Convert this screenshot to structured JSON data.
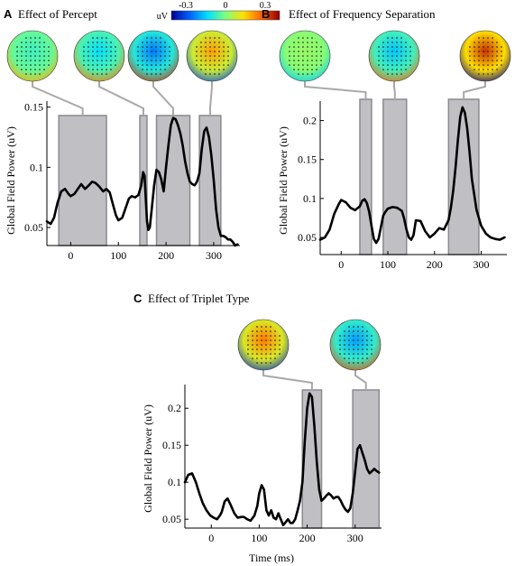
{
  "colorbar": {
    "unit": "uV",
    "min_label": "-0.3",
    "mid_label": "0",
    "max_label": "0.3",
    "colors": [
      "#00008f",
      "#005fff",
      "#00dfff",
      "#7fff7f",
      "#ffdf00",
      "#ff5f00",
      "#8f0000"
    ]
  },
  "style": {
    "line_color": "#000000",
    "window_fill": "#c0c0c4",
    "window_stroke": "#8a8a8e",
    "connector_color": "#a8a8a8"
  },
  "chart_data": [
    {
      "id": "A",
      "type": "line",
      "letter": "A",
      "title": "Effect of Percept",
      "xlabel": "",
      "ylabel": "Global Field Power (uV)",
      "xlim": [
        -50,
        355
      ],
      "ylim": [
        0.035,
        0.155
      ],
      "xticks": [
        "0",
        "100",
        "200",
        "300"
      ],
      "yticks": [
        "0.05",
        "0.1",
        "0.15"
      ],
      "windows": [
        [
          -25,
          75
        ],
        [
          145,
          160
        ],
        [
          180,
          250
        ],
        [
          270,
          315
        ]
      ],
      "x": [
        -50,
        -42,
        -35,
        -28,
        -20,
        -12,
        -5,
        0,
        8,
        15,
        22,
        30,
        38,
        45,
        52,
        60,
        68,
        75,
        82,
        88,
        95,
        100,
        108,
        115,
        122,
        128,
        135,
        142,
        148,
        152,
        155,
        158,
        160,
        163,
        166,
        170,
        175,
        180,
        185,
        190,
        195,
        200,
        205,
        210,
        215,
        220,
        225,
        230,
        235,
        240,
        245,
        250,
        255,
        260,
        265,
        270,
        275,
        280,
        285,
        290,
        295,
        300,
        305,
        310,
        315,
        320,
        325,
        330,
        335,
        340,
        345,
        350
      ],
      "y": [
        0.055,
        0.053,
        0.058,
        0.07,
        0.08,
        0.082,
        0.078,
        0.076,
        0.078,
        0.082,
        0.086,
        0.082,
        0.085,
        0.088,
        0.087,
        0.084,
        0.08,
        0.082,
        0.079,
        0.07,
        0.06,
        0.056,
        0.058,
        0.066,
        0.074,
        0.076,
        0.075,
        0.077,
        0.085,
        0.096,
        0.093,
        0.07,
        0.055,
        0.048,
        0.05,
        0.065,
        0.085,
        0.098,
        0.096,
        0.09,
        0.08,
        0.1,
        0.118,
        0.135,
        0.141,
        0.14,
        0.135,
        0.128,
        0.118,
        0.105,
        0.095,
        0.088,
        0.086,
        0.085,
        0.088,
        0.095,
        0.115,
        0.13,
        0.133,
        0.125,
        0.11,
        0.09,
        0.065,
        0.05,
        0.043,
        0.043,
        0.042,
        0.04,
        0.04,
        0.038,
        0.035,
        0.036
      ],
      "topomaps": [
        {
          "window": 0,
          "value": -0.05
        },
        {
          "window": 1,
          "value": -0.1
        },
        {
          "window": 2,
          "value": -0.18
        },
        {
          "window": 3,
          "value": 0.15
        }
      ]
    },
    {
      "id": "B",
      "type": "line",
      "letter": "B",
      "title": "Effect of Frequency Separation",
      "xlabel": "",
      "ylabel": "Global Field Power (uV)",
      "xlim": [
        -45,
        355
      ],
      "ylim": [
        0.028,
        0.225
      ],
      "xticks": [
        "0",
        "100",
        "200",
        "300"
      ],
      "yticks": [
        "0.05",
        "0.1",
        "0.15",
        "0.2"
      ],
      "windows": [
        [
          40,
          65
        ],
        [
          90,
          140
        ],
        [
          230,
          295
        ]
      ],
      "x": [
        -45,
        -35,
        -25,
        -15,
        -5,
        0,
        10,
        20,
        30,
        40,
        45,
        50,
        55,
        60,
        65,
        70,
        75,
        80,
        85,
        90,
        95,
        100,
        110,
        120,
        130,
        135,
        140,
        145,
        150,
        155,
        160,
        170,
        180,
        190,
        200,
        210,
        220,
        230,
        235,
        240,
        245,
        250,
        255,
        260,
        265,
        270,
        275,
        280,
        290,
        300,
        310,
        320,
        330,
        340,
        350
      ],
      "y": [
        0.047,
        0.05,
        0.06,
        0.08,
        0.093,
        0.098,
        0.095,
        0.088,
        0.085,
        0.09,
        0.097,
        0.099,
        0.094,
        0.083,
        0.065,
        0.048,
        0.043,
        0.048,
        0.063,
        0.078,
        0.083,
        0.087,
        0.089,
        0.088,
        0.084,
        0.074,
        0.06,
        0.05,
        0.047,
        0.053,
        0.072,
        0.071,
        0.058,
        0.05,
        0.055,
        0.062,
        0.06,
        0.072,
        0.088,
        0.11,
        0.14,
        0.175,
        0.205,
        0.217,
        0.21,
        0.19,
        0.16,
        0.125,
        0.085,
        0.065,
        0.055,
        0.05,
        0.048,
        0.047,
        0.05
      ],
      "topomaps": [
        {
          "window": 0,
          "value": 0.02
        },
        {
          "window": 1,
          "value": -0.12
        },
        {
          "window": 2,
          "value": 0.25
        }
      ]
    },
    {
      "id": "C",
      "type": "line",
      "letter": "C",
      "title": "Effect of Triplet Type",
      "xlabel": "Time (ms)",
      "ylabel": "Global Field Power (uV)",
      "xlim": [
        -55,
        355
      ],
      "ylim": [
        0.038,
        0.232
      ],
      "xticks": [
        "0",
        "100",
        "200",
        "300"
      ],
      "yticks": [
        "0.05",
        "0.1",
        "0.15",
        "0.2"
      ],
      "windows": [
        [
          190,
          230
        ],
        [
          295,
          350
        ]
      ],
      "x": [
        -55,
        -48,
        -40,
        -32,
        -25,
        -18,
        -10,
        -2,
        5,
        12,
        18,
        22,
        28,
        34,
        40,
        48,
        55,
        62,
        68,
        75,
        82,
        90,
        96,
        100,
        105,
        110,
        115,
        120,
        125,
        130,
        135,
        140,
        145,
        150,
        155,
        160,
        165,
        170,
        175,
        180,
        185,
        190,
        195,
        200,
        205,
        210,
        215,
        220,
        225,
        230,
        235,
        240,
        245,
        250,
        255,
        260,
        265,
        270,
        275,
        280,
        285,
        290,
        295,
        300,
        305,
        310,
        315,
        320,
        325,
        330,
        335,
        340,
        345,
        350
      ],
      "y": [
        0.1,
        0.11,
        0.112,
        0.1,
        0.085,
        0.072,
        0.062,
        0.055,
        0.052,
        0.05,
        0.055,
        0.06,
        0.074,
        0.078,
        0.07,
        0.058,
        0.052,
        0.053,
        0.053,
        0.05,
        0.048,
        0.055,
        0.068,
        0.085,
        0.096,
        0.09,
        0.062,
        0.055,
        0.062,
        0.052,
        0.05,
        0.058,
        0.05,
        0.042,
        0.046,
        0.05,
        0.045,
        0.045,
        0.05,
        0.062,
        0.075,
        0.1,
        0.155,
        0.2,
        0.22,
        0.215,
        0.175,
        0.128,
        0.09,
        0.075,
        0.078,
        0.082,
        0.085,
        0.082,
        0.078,
        0.08,
        0.08,
        0.075,
        0.068,
        0.063,
        0.06,
        0.065,
        0.085,
        0.115,
        0.145,
        0.15,
        0.14,
        0.13,
        0.118,
        0.112,
        0.115,
        0.118,
        0.115,
        0.113
      ],
      "topomaps": [
        {
          "window": 0,
          "value": 0.18
        },
        {
          "window": 1,
          "value": -0.15
        }
      ]
    }
  ]
}
